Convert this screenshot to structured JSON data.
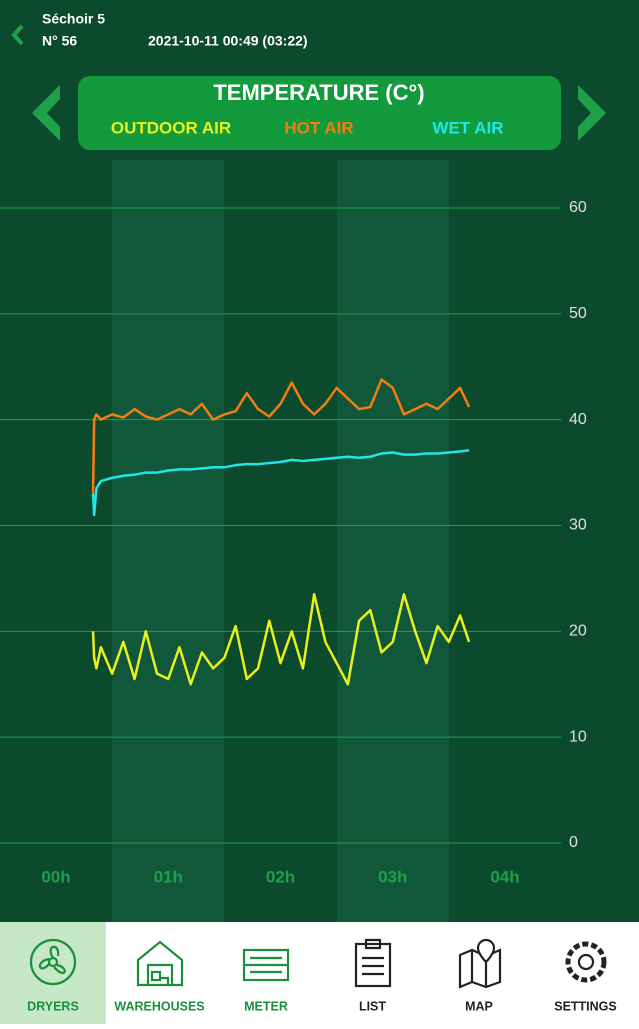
{
  "header": {
    "title": "Séchoir 5",
    "number": "N° 56",
    "datetime": "2021-10-11 00:49 (03:22)"
  },
  "chart_data": {
    "type": "line",
    "title": "TEMPERATURE (C°)",
    "x": [
      0.33,
      0.34,
      0.36,
      0.4,
      0.5,
      0.6,
      0.7,
      0.8,
      0.9,
      1.0,
      1.1,
      1.2,
      1.3,
      1.4,
      1.5,
      1.6,
      1.7,
      1.8,
      1.9,
      2.0,
      2.1,
      2.2,
      2.3,
      2.4,
      2.5,
      2.6,
      2.7,
      2.8,
      2.9,
      3.0,
      3.1,
      3.2,
      3.3,
      3.4,
      3.5,
      3.6,
      3.68
    ],
    "series": [
      {
        "name": "OUTDOOR AIR",
        "color": "#e8f01e",
        "values": [
          20,
          17.5,
          16.5,
          18.5,
          16,
          19,
          15.5,
          20,
          16,
          15.5,
          18.5,
          15,
          18,
          16.5,
          17.5,
          20.5,
          15.5,
          16.5,
          21,
          17,
          20,
          16.5,
          23.5,
          19,
          17,
          15,
          21,
          22,
          18,
          19,
          23.5,
          20,
          17,
          20.5,
          19,
          21.5,
          19
        ]
      },
      {
        "name": "HOT AIR",
        "color": "#f27d10",
        "values": [
          33,
          40,
          40.5,
          40,
          40.5,
          40.2,
          41,
          40.3,
          40,
          40.5,
          41,
          40.5,
          41.5,
          40,
          40.5,
          40.8,
          42.5,
          41,
          40.3,
          41.5,
          43.5,
          41.5,
          40.5,
          41.5,
          43,
          42,
          41,
          41.2,
          43.8,
          43,
          40.5,
          41,
          41.5,
          41,
          42,
          43,
          41.2
        ]
      },
      {
        "name": "WET AIR",
        "color": "#22e6e6",
        "values": [
          33,
          31,
          33.5,
          34.2,
          34.5,
          34.7,
          34.8,
          35,
          35,
          35.2,
          35.3,
          35.3,
          35.4,
          35.5,
          35.5,
          35.7,
          35.8,
          35.8,
          35.9,
          36,
          36.2,
          36.1,
          36.2,
          36.3,
          36.4,
          36.5,
          36.4,
          36.5,
          36.8,
          36.9,
          36.7,
          36.7,
          36.8,
          36.8,
          36.9,
          37,
          37.1
        ]
      }
    ],
    "xlim": [
      0,
      4
    ],
    "xticks": [
      {
        "value": 0,
        "label": "00h"
      },
      {
        "value": 1,
        "label": "01h"
      },
      {
        "value": 2,
        "label": "02h"
      },
      {
        "value": 3,
        "label": "03h"
      },
      {
        "value": 4,
        "label": "04h"
      }
    ],
    "ylim": [
      0,
      60
    ],
    "yticks": [
      0,
      10,
      20,
      30,
      40,
      50,
      60
    ],
    "grid": true
  },
  "nav": [
    {
      "label": "DRYERS"
    },
    {
      "label": "WAREHOUSES"
    },
    {
      "label": "METER"
    },
    {
      "label": "LIST"
    },
    {
      "label": "MAP"
    },
    {
      "label": "SETTINGS"
    }
  ]
}
